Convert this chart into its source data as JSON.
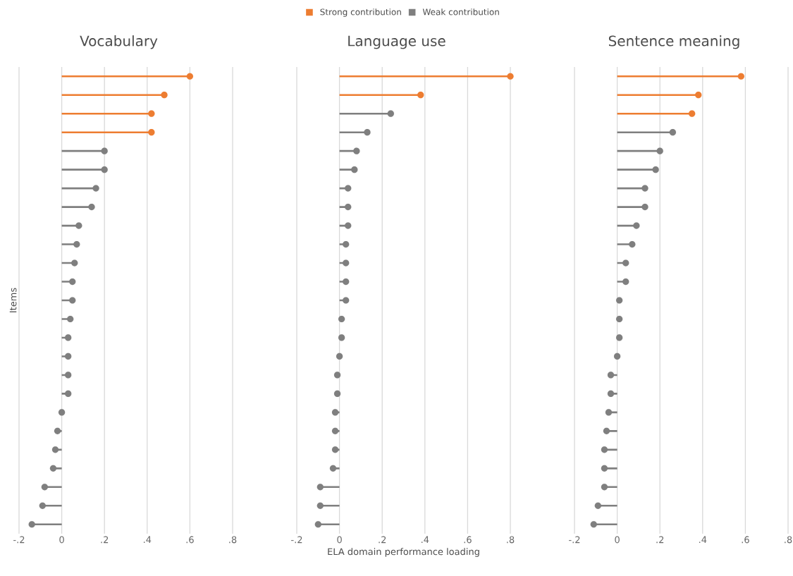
{
  "chart_data": [
    {
      "type": "lollipop",
      "title": "Vocabulary",
      "ylabel": "Items",
      "orientation": "horizontal",
      "marker": "circle",
      "grid": "x",
      "tick_labels": "x",
      "categories": [
        null,
        null,
        null,
        null,
        null,
        null,
        null,
        null,
        null,
        null,
        null,
        null,
        null,
        null,
        null,
        null,
        null,
        null,
        null,
        null,
        null,
        null,
        null,
        null,
        null
      ],
      "xlim": [
        -0.2,
        0.8
      ],
      "xticks": [
        {
          "value": -0.2,
          "label": "-.2"
        },
        0,
        {
          "value": 0.2,
          "label": ".2"
        },
        {
          "value": 0.4,
          "label": ".4"
        },
        {
          "value": 0.6,
          "label": ".6"
        },
        {
          "value": 0.8,
          "label": ".8"
        }
      ],
      "series": [
        {
          "color": "#ed7d31",
          "values": [
            0.6,
            0.48,
            0.42,
            0.42,
            null,
            null,
            null,
            null,
            null,
            null,
            null,
            null,
            null,
            null,
            null,
            null,
            null,
            null,
            null,
            null,
            null,
            null,
            null,
            null,
            null
          ]
        },
        {
          "color": "#7f7f7f",
          "values": [
            null,
            null,
            null,
            null,
            0.2,
            0.2,
            0.16,
            0.14,
            0.08,
            0.07,
            0.06,
            0.05,
            0.05,
            0.04,
            0.03,
            0.03,
            0.03,
            0.03,
            0.0,
            -0.02,
            -0.03,
            -0.04,
            -0.08,
            -0.09,
            -0.14
          ]
        }
      ]
    },
    {
      "type": "lollipop",
      "title": "Language use",
      "xlabel": "ELA domain performance loading",
      "orientation": "horizontal",
      "marker": "circle",
      "grid": "x",
      "tick_labels": "x",
      "legend": "top",
      "categories": [
        null,
        null,
        null,
        null,
        null,
        null,
        null,
        null,
        null,
        null,
        null,
        null,
        null,
        null,
        null,
        null,
        null,
        null,
        null,
        null,
        null,
        null,
        null,
        null,
        null
      ],
      "xlim": [
        -0.2,
        0.8
      ],
      "xticks": [
        {
          "value": -0.2,
          "label": "-.2"
        },
        0,
        {
          "value": 0.2,
          "label": ".2"
        },
        {
          "value": 0.4,
          "label": ".4"
        },
        {
          "value": 0.6,
          "label": ".6"
        },
        {
          "value": 0.8,
          "label": ".8"
        }
      ],
      "series": [
        {
          "name": "Strong contribution",
          "color": "#ed7d31",
          "values": [
            0.8,
            0.38,
            null,
            null,
            null,
            null,
            null,
            null,
            null,
            null,
            null,
            null,
            null,
            null,
            null,
            null,
            null,
            null,
            null,
            null,
            null,
            null,
            null,
            null,
            null
          ]
        },
        {
          "name": "Weak contribution",
          "color": "#7f7f7f",
          "values": [
            null,
            null,
            0.24,
            0.13,
            0.08,
            0.07,
            0.04,
            0.04,
            0.04,
            0.03,
            0.03,
            0.03,
            0.03,
            0.01,
            0.01,
            0.0,
            -0.01,
            -0.01,
            -0.02,
            -0.02,
            -0.02,
            -0.03,
            -0.09,
            -0.09,
            -0.1
          ]
        }
      ]
    },
    {
      "type": "lollipop",
      "title": "Sentence meaning",
      "orientation": "horizontal",
      "marker": "circle",
      "grid": "x",
      "tick_labels": "x",
      "categories": [
        null,
        null,
        null,
        null,
        null,
        null,
        null,
        null,
        null,
        null,
        null,
        null,
        null,
        null,
        null,
        null,
        null,
        null,
        null,
        null,
        null,
        null,
        null,
        null,
        null
      ],
      "xlim": [
        -0.2,
        0.8
      ],
      "xticks": [
        {
          "value": -0.2,
          "label": "-.2"
        },
        0,
        {
          "value": 0.2,
          "label": ".2"
        },
        {
          "value": 0.4,
          "label": ".4"
        },
        {
          "value": 0.6,
          "label": ".6"
        },
        {
          "value": 0.8,
          "label": ".8"
        }
      ],
      "series": [
        {
          "color": "#ed7d31",
          "values": [
            0.58,
            0.38,
            0.35,
            null,
            null,
            null,
            null,
            null,
            null,
            null,
            null,
            null,
            null,
            null,
            null,
            null,
            null,
            null,
            null,
            null,
            null,
            null,
            null,
            null,
            null
          ]
        },
        {
          "color": "#7f7f7f",
          "values": [
            null,
            null,
            null,
            0.26,
            0.2,
            0.18,
            0.13,
            0.13,
            0.09,
            0.07,
            0.04,
            0.04,
            0.01,
            0.01,
            0.01,
            0.0,
            -0.03,
            -0.03,
            -0.04,
            -0.05,
            -0.06,
            -0.06,
            -0.06,
            -0.09,
            -0.11
          ]
        }
      ]
    }
  ]
}
